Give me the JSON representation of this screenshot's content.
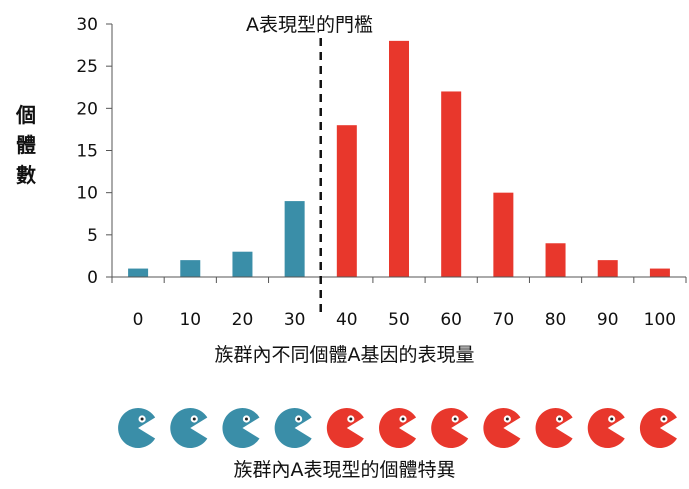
{
  "chart_data": {
    "type": "bar",
    "categories": [
      "0",
      "10",
      "20",
      "30",
      "40",
      "50",
      "60",
      "70",
      "80",
      "90",
      "100"
    ],
    "values": [
      1,
      2,
      3,
      9,
      18,
      28,
      22,
      10,
      4,
      2,
      1
    ],
    "colors": [
      "#3a8ea8",
      "#3a8ea8",
      "#3a8ea8",
      "#3a8ea8",
      "#e8372c",
      "#e8372c",
      "#e8372c",
      "#e8372c",
      "#e8372c",
      "#e8372c",
      "#e8372c"
    ],
    "ylim": [
      0,
      30
    ],
    "yticks": [
      0,
      5,
      10,
      15,
      20,
      25,
      30
    ],
    "ylabel": "個體數",
    "xlabel": "族群內不同個體A基因的表現量",
    "grid": false,
    "threshold": {
      "label": "A表現型的門檻",
      "x_between": [
        "30",
        "40"
      ]
    }
  },
  "individuals": {
    "caption": "族群內A表現型的個體特異",
    "colors": [
      "#3a8ea8",
      "#3a8ea8",
      "#3a8ea8",
      "#3a8ea8",
      "#e8372c",
      "#e8372c",
      "#e8372c",
      "#e8372c",
      "#e8372c",
      "#e8372c",
      "#e8372c"
    ],
    "icon": "pacman-icon"
  }
}
